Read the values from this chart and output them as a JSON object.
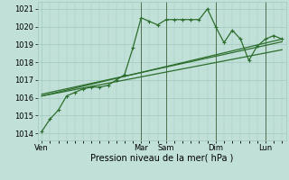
{
  "background_color": "#c0e0d8",
  "grid_color": "#a0c8c0",
  "line_color_main": "#2d6e2d",
  "line_color_smooth1": "#2d6e2d",
  "line_color_smooth2": "#2d6e2d",
  "ylabel_ticks": [
    1014,
    1015,
    1016,
    1017,
    1018,
    1019,
    1020,
    1021
  ],
  "ylim": [
    1013.6,
    1021.4
  ],
  "xlabel": "Pression niveau de la mer( hPa )",
  "xtick_labels": [
    "Ven",
    "Mar",
    "Sam",
    "Dim",
    "Lun"
  ],
  "xtick_positions": [
    0,
    12,
    15,
    21,
    27
  ],
  "x_total": 29,
  "xlim": [
    -0.5,
    29.5
  ],
  "series1_x": [
    0,
    1,
    2,
    3,
    4,
    5,
    6,
    7,
    8,
    9,
    10,
    11,
    12,
    13,
    14,
    15,
    16,
    17,
    18,
    19,
    20,
    21,
    22,
    23,
    24,
    25,
    26,
    27,
    28,
    29
  ],
  "series1_y": [
    1014.1,
    1014.8,
    1015.3,
    1016.1,
    1016.3,
    1016.5,
    1016.6,
    1016.6,
    1016.7,
    1017.0,
    1017.3,
    1018.8,
    1020.5,
    1020.3,
    1020.1,
    1020.4,
    1020.4,
    1020.4,
    1020.4,
    1020.4,
    1021.0,
    1020.0,
    1019.1,
    1019.8,
    1019.3,
    1018.1,
    1018.9,
    1019.3,
    1019.5,
    1019.3
  ],
  "series2_x": [
    0,
    29
  ],
  "series2_y": [
    1016.1,
    1019.3
  ],
  "series3_x": [
    0,
    29
  ],
  "series3_y": [
    1016.1,
    1018.7
  ],
  "series4_x": [
    0,
    29
  ],
  "series4_y": [
    1016.2,
    1019.15
  ],
  "vline_positions": [
    12,
    15,
    21,
    27
  ],
  "marker_size": 3.5,
  "linewidth_main": 0.9,
  "linewidth_smooth": 0.9,
  "tick_fontsize": 6,
  "xlabel_fontsize": 7
}
